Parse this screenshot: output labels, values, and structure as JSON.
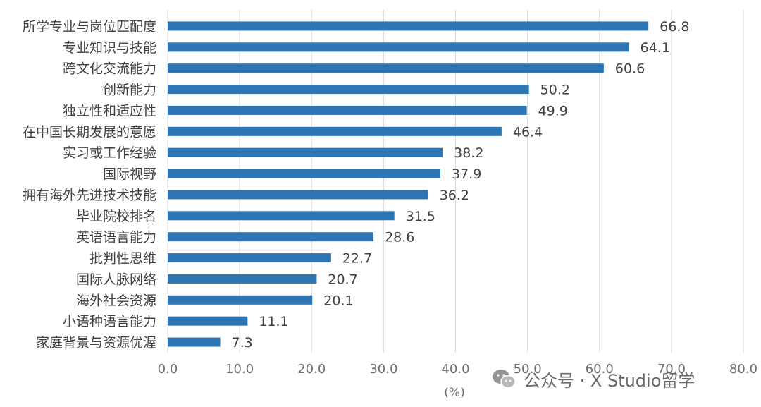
{
  "chart_data": {
    "type": "bar",
    "orientation": "horizontal",
    "categories": [
      "所学专业与岗位匹配度",
      "专业知识与技能",
      "跨文化交流能力",
      "创新能力",
      "独立性和适应性",
      "在中国长期发展的意愿",
      "实习或工作经验",
      "国际视野",
      "拥有海外先进技术技能",
      "毕业院校排名",
      "英语语言能力",
      "批判性思维",
      "国际人脉网络",
      "海外社会资源",
      "小语种语言能力",
      "家庭背景与资源优渥"
    ],
    "values": [
      66.8,
      64.1,
      60.6,
      50.2,
      49.9,
      46.4,
      38.2,
      37.9,
      36.2,
      31.5,
      28.6,
      22.7,
      20.7,
      20.1,
      11.1,
      7.3
    ],
    "value_labels": [
      "66.8",
      "64.1",
      "60.6",
      "50.2",
      "49.9",
      "46.4",
      "38.2",
      "37.9",
      "36.2",
      "31.5",
      "28.6",
      "22.7",
      "20.7",
      "20.1",
      "11.1",
      "7.3"
    ],
    "x_ticks": [
      "0.0",
      "10.0",
      "20.0",
      "30.0",
      "40.0",
      "50.0",
      "60.0",
      "70.0",
      "80.0"
    ],
    "xlim": [
      0,
      80
    ],
    "xlabel": "(%)",
    "bar_color": "#2e75b6",
    "grid": "vertical",
    "legend": "none"
  },
  "watermark": {
    "text": "公众号 · X Studio留学",
    "icon": "wechat-icon"
  }
}
